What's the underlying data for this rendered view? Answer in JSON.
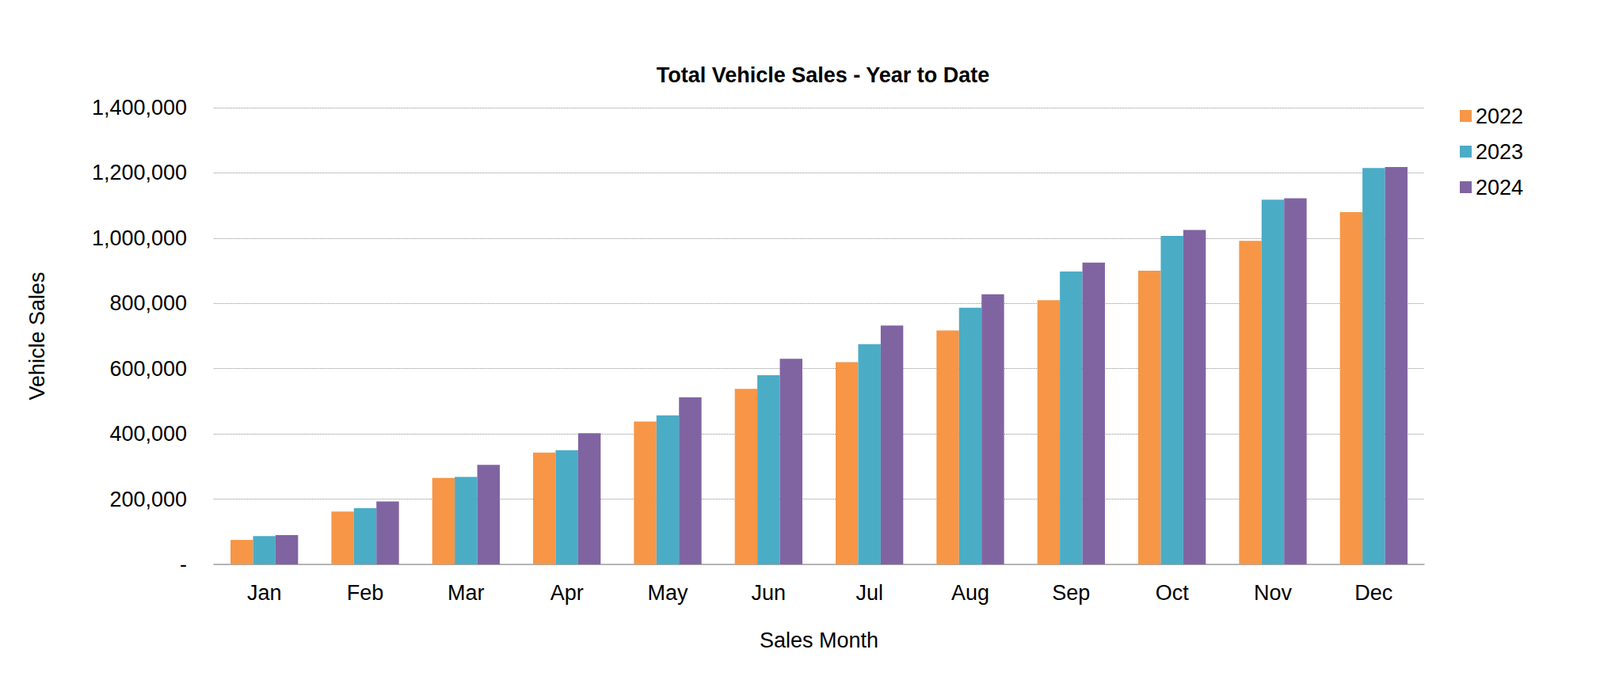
{
  "chart_data": {
    "type": "bar",
    "title": "Total Vehicle Sales - Year to Date",
    "x_label": "Sales Month",
    "y_label": "Vehicle Sales",
    "categories": [
      "Jan",
      "Feb",
      "Mar",
      "Apr",
      "May",
      "Jun",
      "Jul",
      "Aug",
      "Sep",
      "Oct",
      "Nov",
      "Dec"
    ],
    "series": [
      {
        "name": "2022",
        "color": "#F79646",
        "values": [
          75000,
          162000,
          265000,
          343000,
          438000,
          538000,
          620000,
          717000,
          810000,
          900000,
          992000,
          1080000
        ]
      },
      {
        "name": "2023",
        "color": "#4BACC6",
        "values": [
          87000,
          172000,
          268000,
          350000,
          457000,
          580000,
          675000,
          787000,
          898000,
          1007000,
          1118000,
          1215000
        ]
      },
      {
        "name": "2024",
        "color": "#8064A2",
        "values": [
          90000,
          193000,
          305000,
          402000,
          512000,
          630000,
          732000,
          828000,
          925000,
          1025000,
          1122000,
          1218000
        ]
      }
    ],
    "ylim": [
      0,
      1400000
    ],
    "yticks": [
      {
        "value": 0,
        "label": "-"
      },
      {
        "value": 200000,
        "label": "200,000"
      },
      {
        "value": 400000,
        "label": "400,000"
      },
      {
        "value": 600000,
        "label": "600,000"
      },
      {
        "value": 800000,
        "label": "800,000"
      },
      {
        "value": 1000000,
        "label": "1,000,000"
      },
      {
        "value": 1200000,
        "label": "1,200,000"
      },
      {
        "value": 1400000,
        "label": "1,400,000"
      }
    ],
    "grid": true,
    "legend": "right"
  }
}
